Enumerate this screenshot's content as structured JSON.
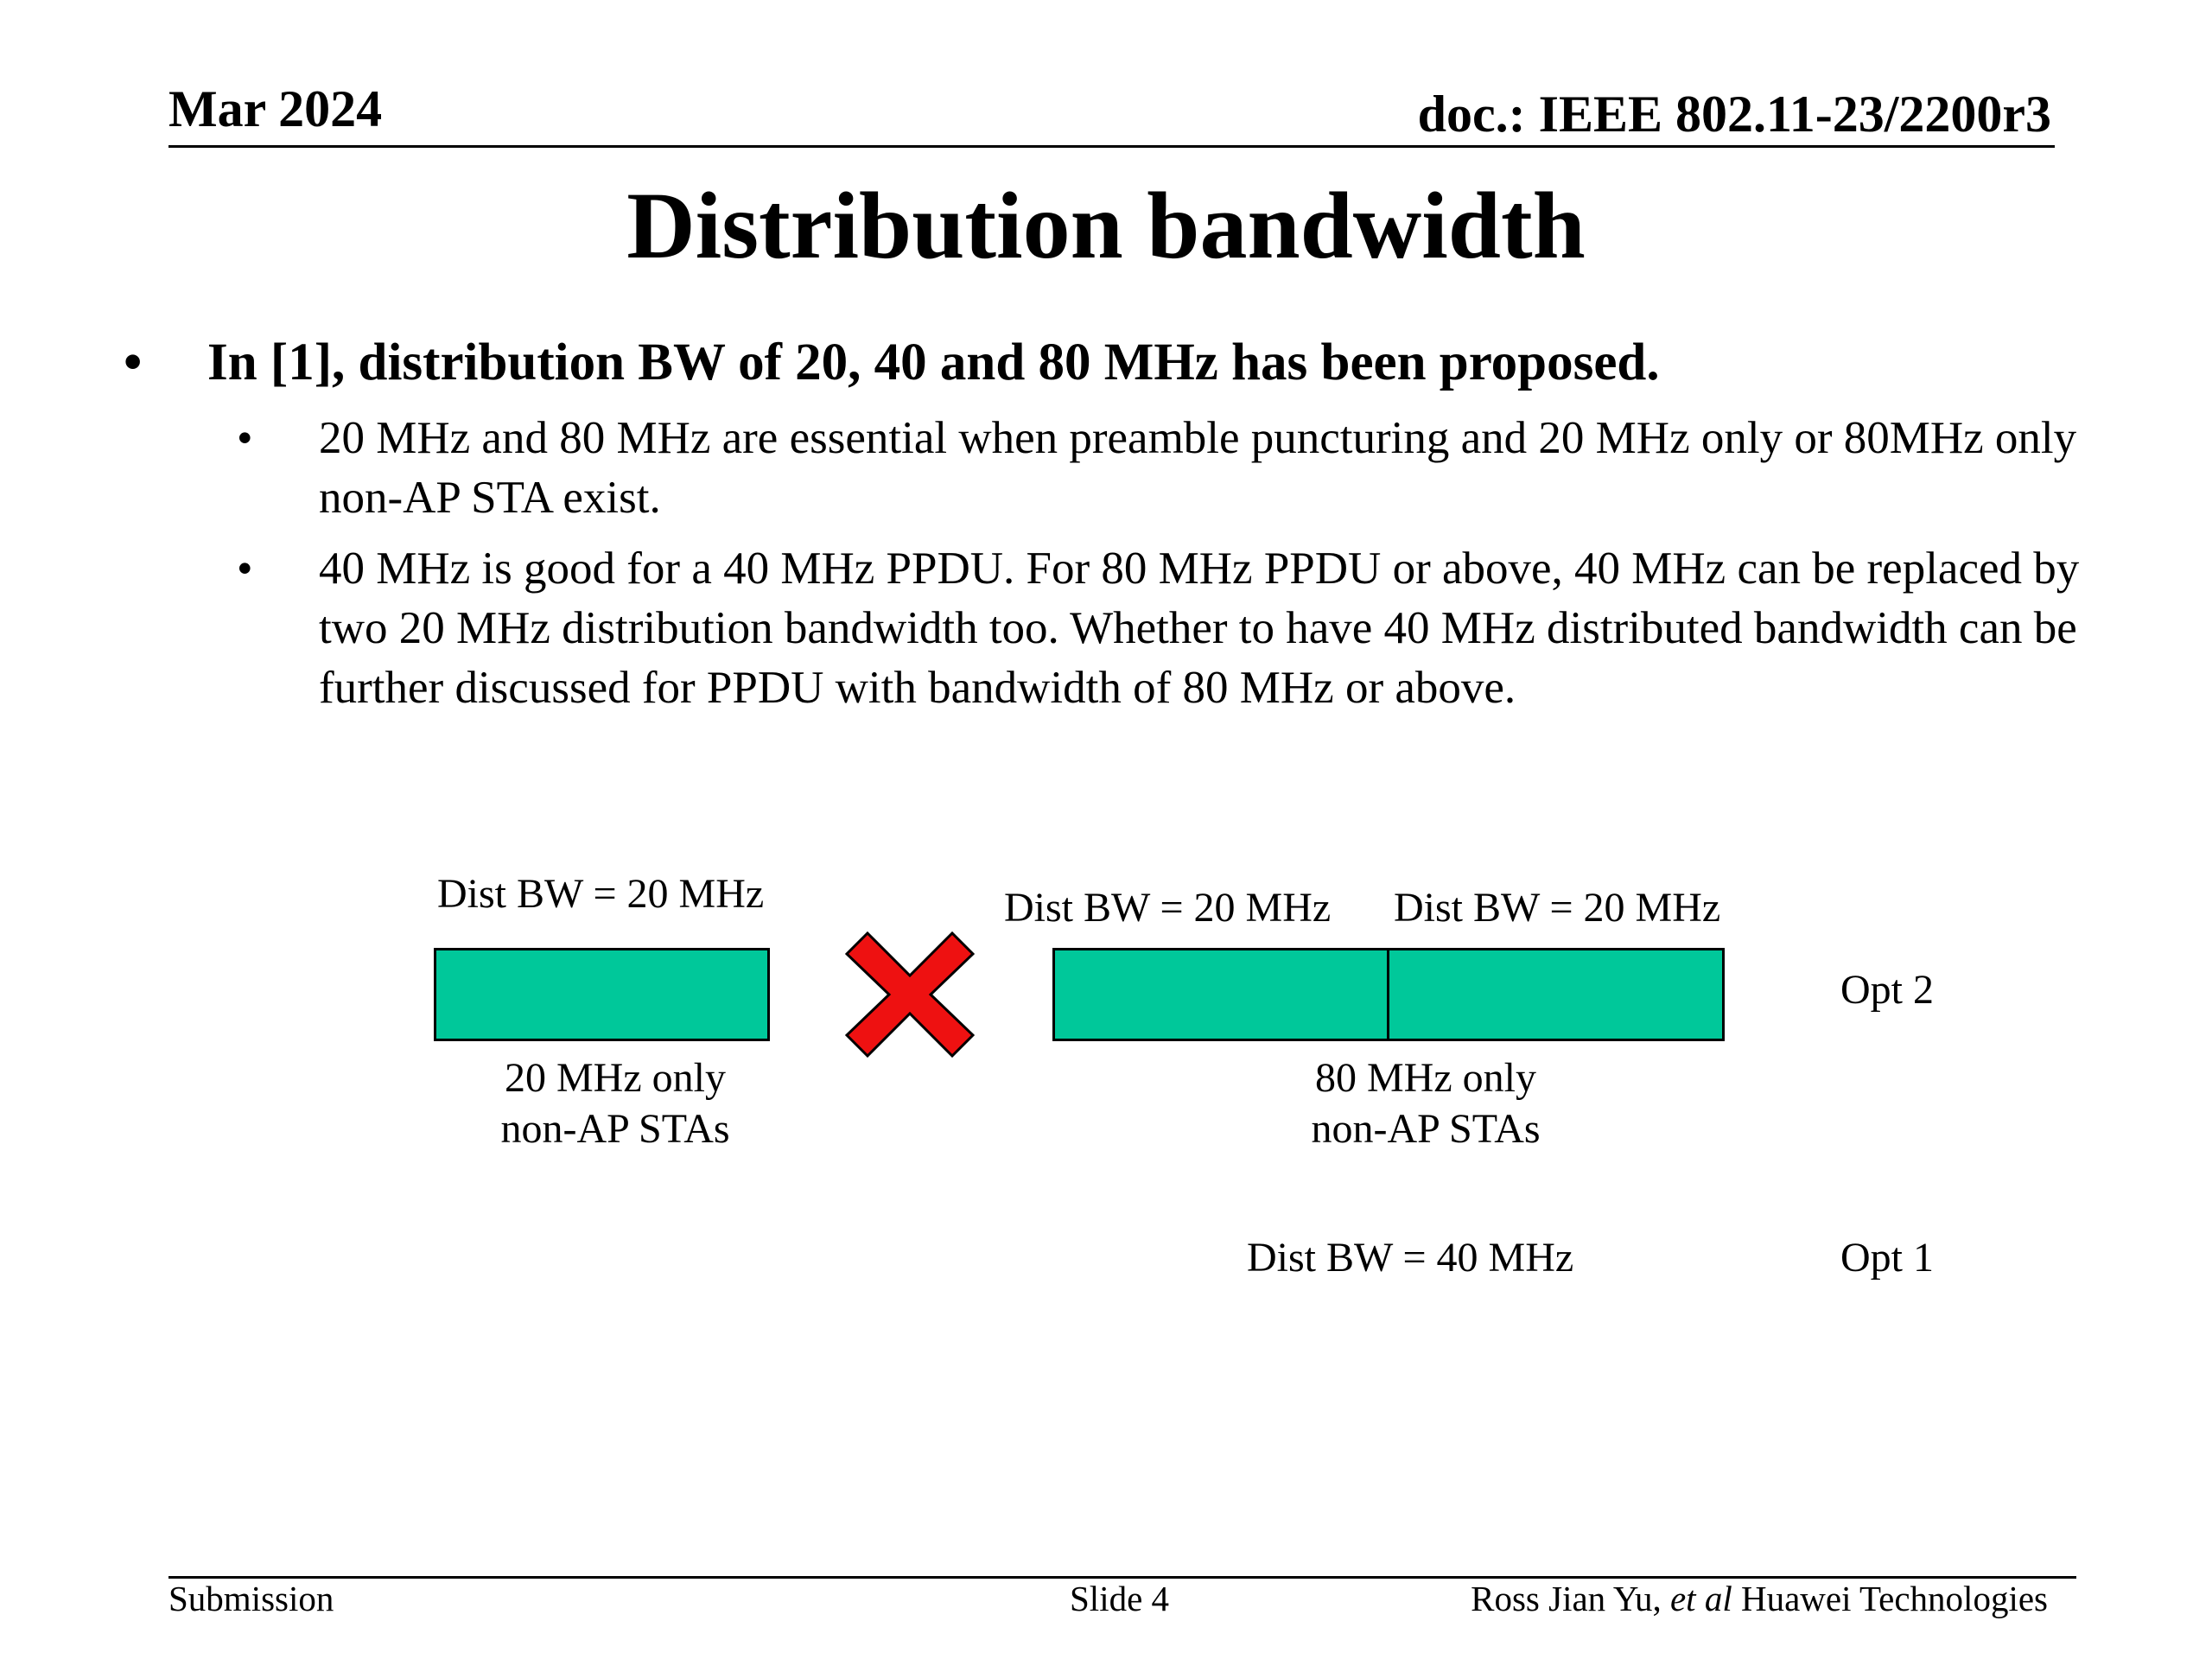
{
  "header": {
    "date": "Mar 2024",
    "doc": "doc.: IEEE 802.11-23/2200r3"
  },
  "title": "Distribution bandwidth",
  "bullets": {
    "main": "In [1], distribution BW of 20, 40 and 80 MHz has been proposed.",
    "subs": [
      "20 MHz and 80 MHz are essential when preamble puncturing and 20 MHz only or 80MHz only non-AP STA exist.",
      "40 MHz is good for a 40 MHz PPDU. For 80 MHz PPDU or above, 40 MHz can be replaced by two 20 MHz distribution bandwidth too. Whether to have 40 MHz distributed bandwidth can be further discussed for PPDU with bandwidth of 80 MHz or above."
    ],
    "bullet_glyph": "•"
  },
  "diagram": {
    "left_label": "Dist BW = 20 MHz",
    "left_caption_line1": "20 MHz only",
    "left_caption_line2": "non-AP STAs",
    "right_label_a": "Dist BW = 20 MHz",
    "right_label_b": "Dist BW = 20 MHz",
    "right_caption_line1": "80 MHz only",
    "right_caption_line2": "non-AP STAs",
    "opt2": "Opt 2",
    "opt1_label": "Dist BW = 40 MHz",
    "opt1": "Opt 1",
    "box_color": "#00c89a",
    "x_color": "#ee1111",
    "x_icon": "cross-mark-icon"
  },
  "footer": {
    "submission": "Submission",
    "slide": "Slide 4",
    "author_name": "Ross Jian Yu, ",
    "author_etal": "et al",
    "author_org": " Huawei Technologies"
  }
}
